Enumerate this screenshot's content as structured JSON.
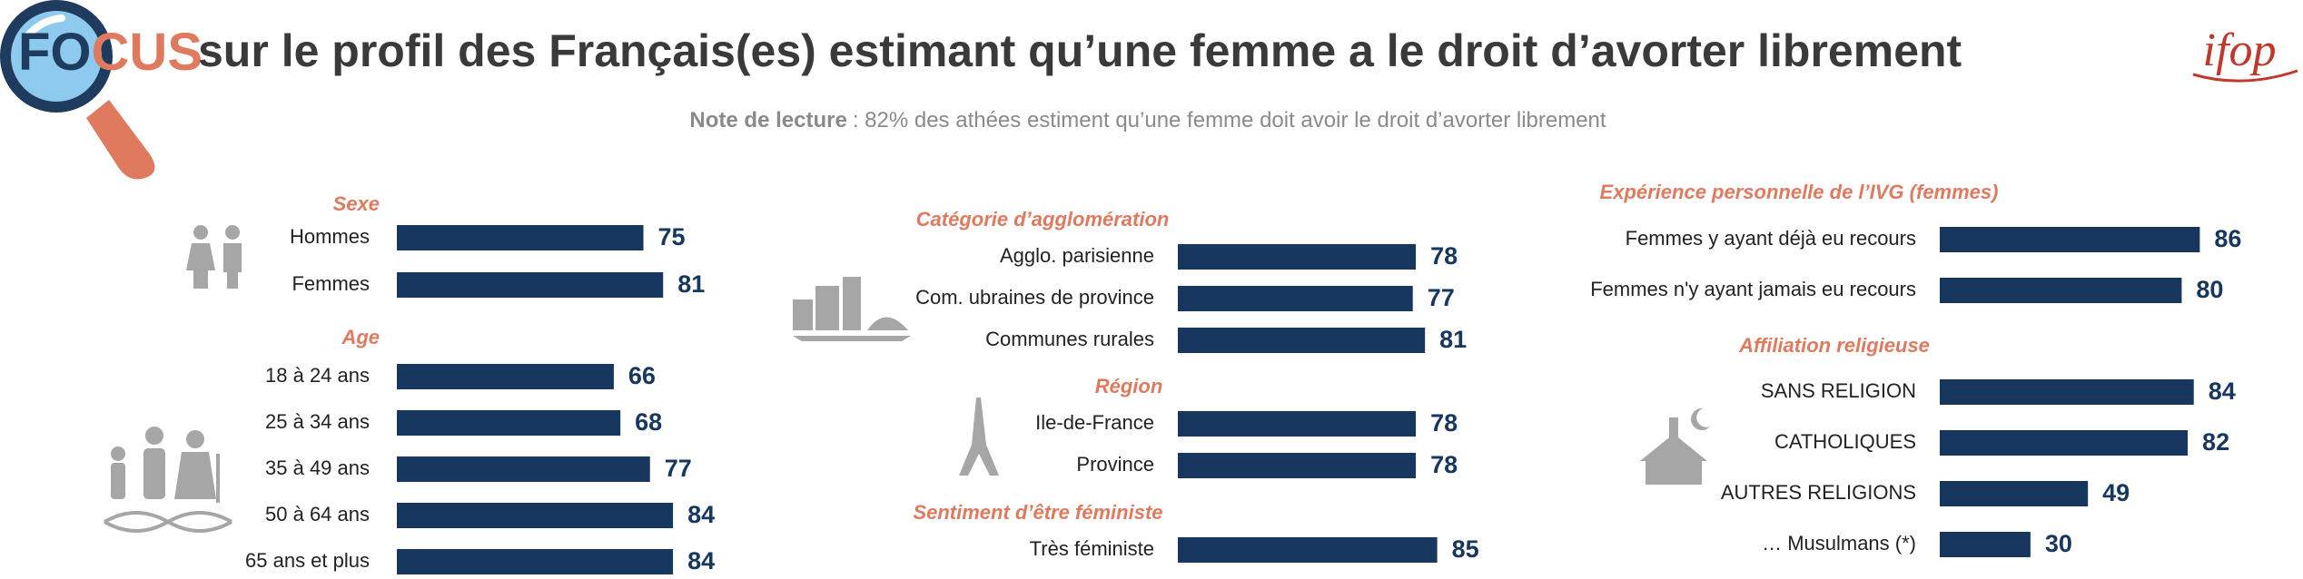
{
  "header": {
    "focus_fo": "FO",
    "focus_cus": "CUS",
    "title": "sur le profil des Français(es) estimant qu’une femme a le droit d’avorter librement",
    "note_label": "Note de lecture",
    "note_text": ": 82% des athées estiment qu’une femme doit avoir le droit d’avorter librement",
    "logo": "ifop"
  },
  "chart_data": [
    {
      "type": "bar",
      "orientation": "horizontal",
      "title": "Sexe",
      "categories": [
        "Hommes",
        "Femmes"
      ],
      "values": [
        75,
        81
      ],
      "color": "#17375e"
    },
    {
      "type": "bar",
      "orientation": "horizontal",
      "title": "Age",
      "categories": [
        "18 à 24 ans",
        "25 à 34 ans",
        "35 à 49 ans",
        "50 à 64 ans",
        "65 ans et plus"
      ],
      "values": [
        66,
        68,
        77,
        84,
        84
      ],
      "color": "#17375e"
    },
    {
      "type": "bar",
      "orientation": "horizontal",
      "title": "Catégorie d’agglomération",
      "categories": [
        "Agglo. parisienne",
        "Com. ubraines de province",
        "Communes rurales"
      ],
      "values": [
        78,
        77,
        81
      ],
      "color": "#17375e"
    },
    {
      "type": "bar",
      "orientation": "horizontal",
      "title": "Région",
      "categories": [
        "Ile-de-France",
        "Province"
      ],
      "values": [
        78,
        78
      ],
      "color": "#17375e"
    },
    {
      "type": "bar",
      "orientation": "horizontal",
      "title": "Sentiment d’être féministe",
      "categories": [
        "Très féministe"
      ],
      "values": [
        85
      ],
      "color": "#17375e"
    },
    {
      "type": "bar",
      "orientation": "horizontal",
      "title": "Expérience personnelle de l’IVG (femmes)",
      "categories": [
        "Femmes y ayant déjà eu recours",
        "Femmes n'y ayant jamais eu recours"
      ],
      "values": [
        86,
        80
      ],
      "color": "#17375e"
    },
    {
      "type": "bar",
      "orientation": "horizontal",
      "title": "Affiliation religieuse",
      "categories": [
        "SANS RELIGION",
        "CATHOLIQUES",
        "AUTRES RELIGIONS",
        "… Musulmans (*)"
      ],
      "values": [
        84,
        82,
        49,
        30
      ],
      "color": "#17375e"
    }
  ]
}
